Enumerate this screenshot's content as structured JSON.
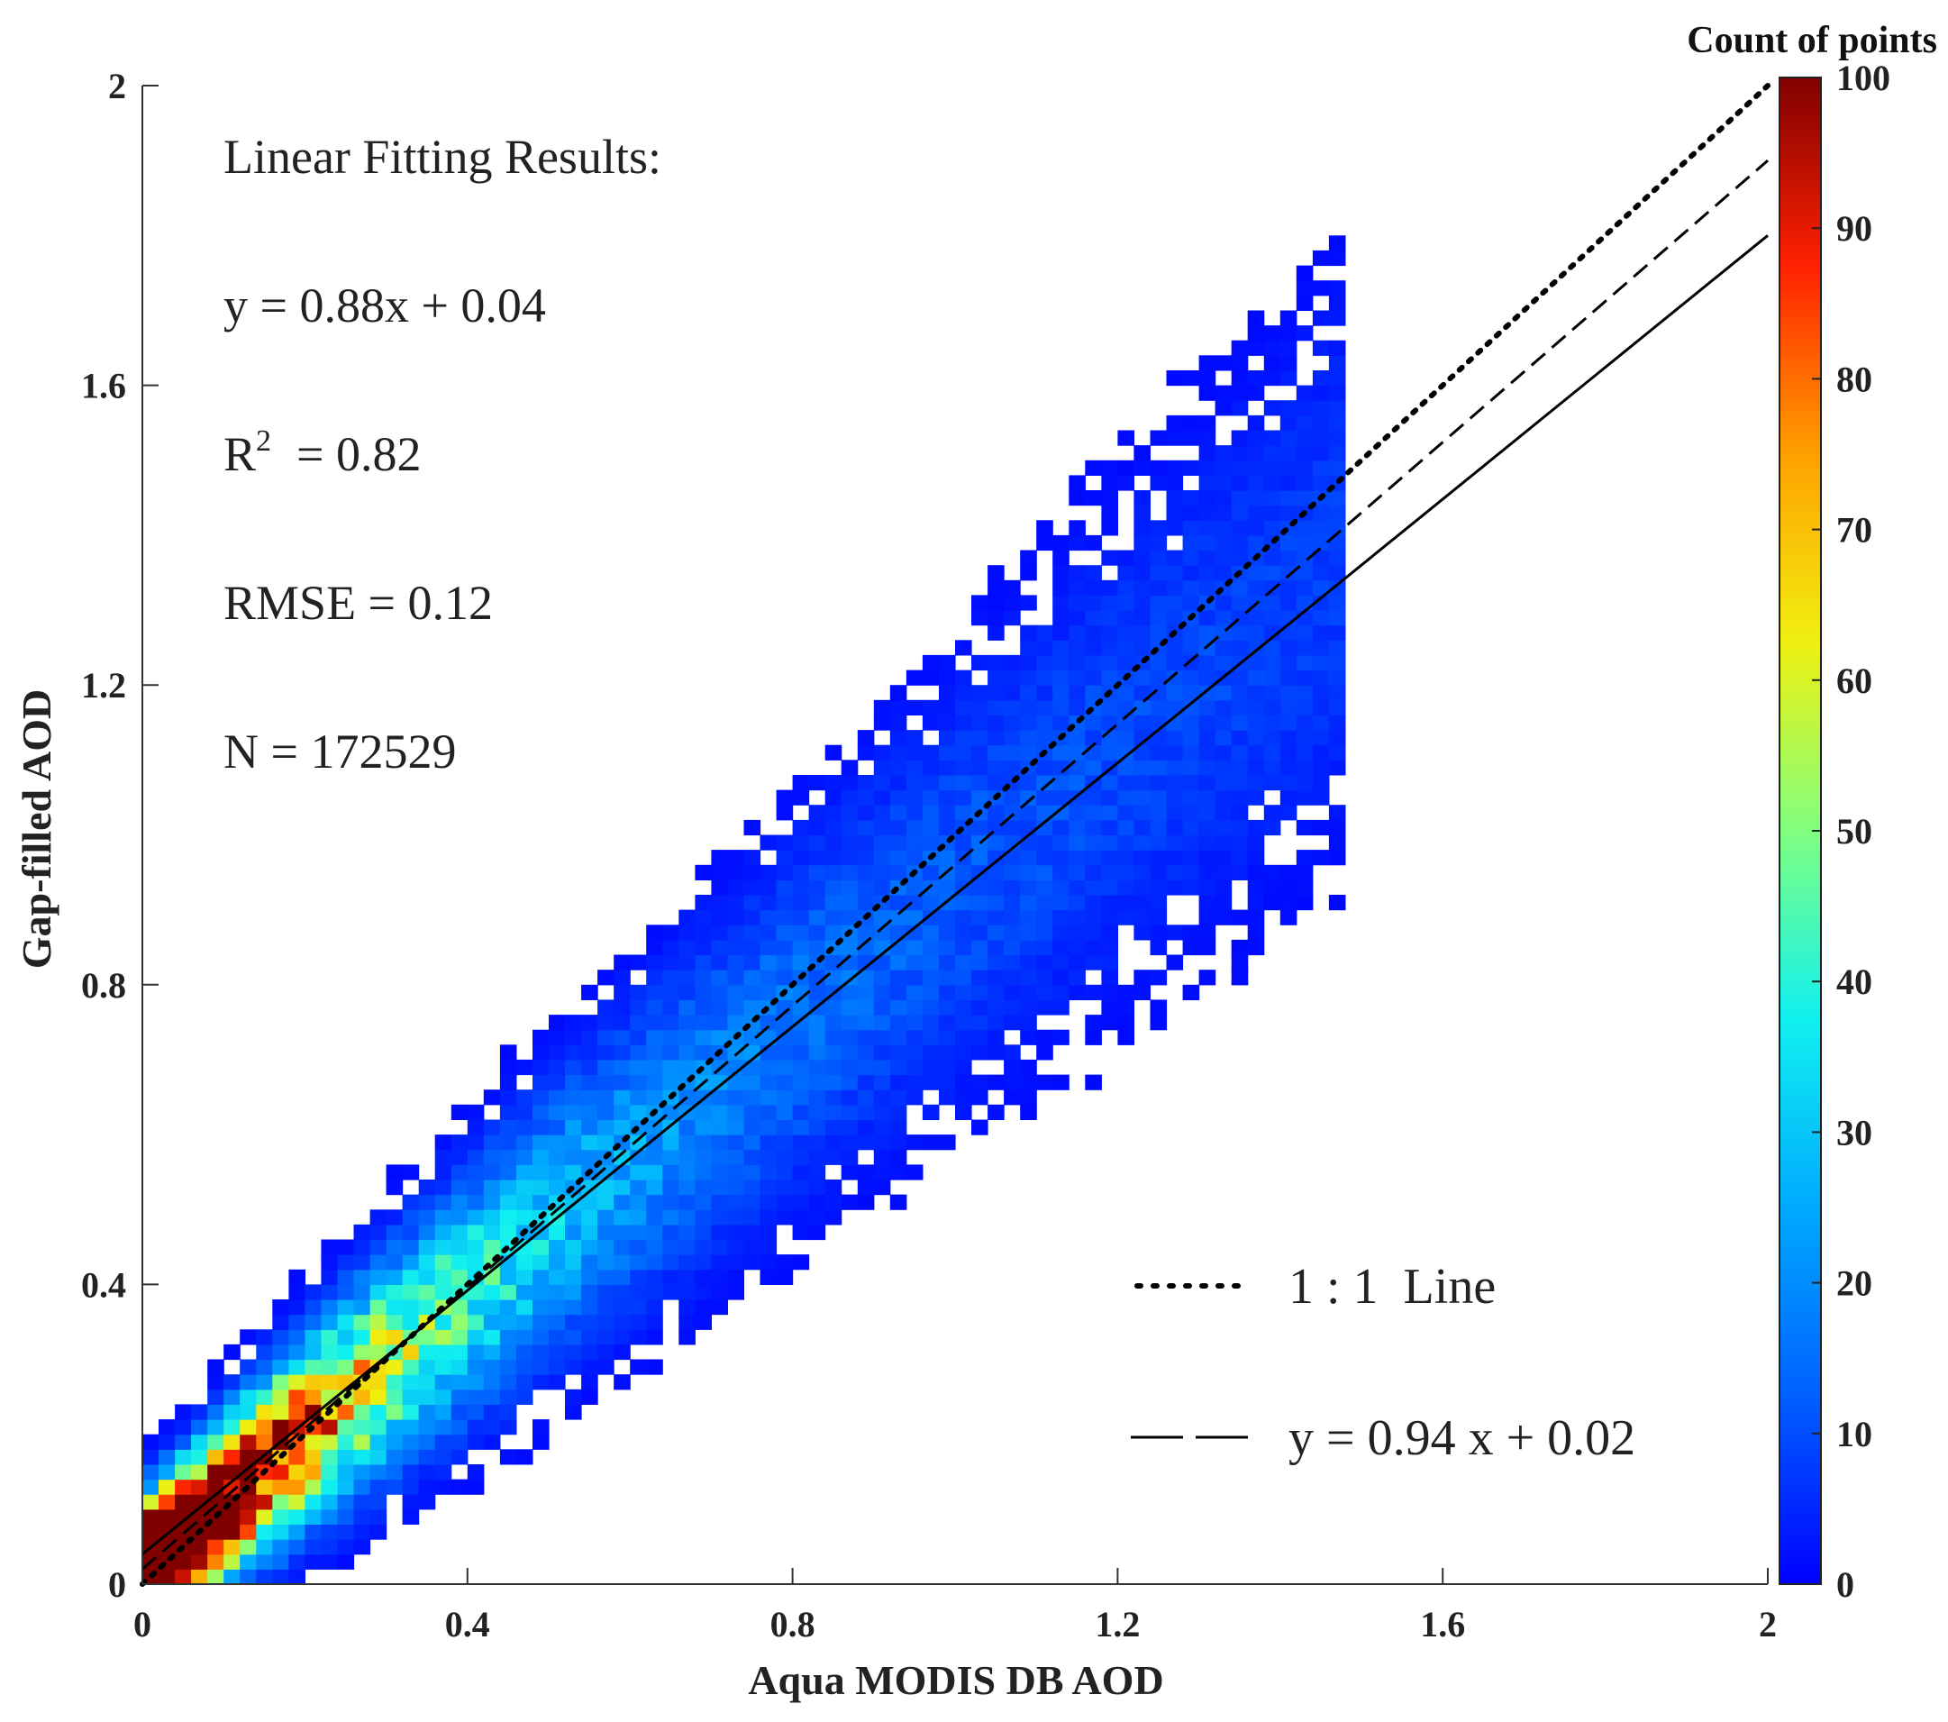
{
  "chart_data": {
    "type": "scatter",
    "subtype": "density-scatter",
    "xlabel": "Aqua MODIS DB AOD",
    "ylabel": "Gap-filled AOD",
    "xlim": [
      0,
      2
    ],
    "ylim": [
      0,
      2
    ],
    "xticks": [
      "0",
      "0.4",
      "0.8",
      "1.2",
      "1.6",
      "2"
    ],
    "yticks": [
      "0",
      "0.4",
      "0.8",
      "1.2",
      "1.6",
      "2"
    ],
    "xtick_values": [
      0,
      0.4,
      0.8,
      1.2,
      1.6,
      2
    ],
    "ytick_values": [
      0,
      0.4,
      0.8,
      1.2,
      1.6,
      2
    ],
    "annotations": {
      "title": "Linear Fitting Results:",
      "equation": "y = 0.88x + 0.04",
      "r2_label": "R",
      "r2_sup": "2",
      "r2_value": "= 0.82",
      "rmse": "RMSE = 0.12",
      "n": "N = 172529"
    },
    "fit_line": {
      "slope": 0.88,
      "intercept": 0.04
    },
    "series": [
      {
        "name": "1 : 1  Line",
        "style": "dotted",
        "slope": 1.0,
        "intercept": 0.0
      },
      {
        "name": "y = 0.94 x + 0.02",
        "style": "dashed",
        "slope": 0.94,
        "intercept": 0.02
      }
    ],
    "density": {
      "bin_size": 0.02,
      "center_slope": 0.91,
      "center_intercept": 0.02,
      "max_count": 100,
      "x_extent": [
        0,
        1.48
      ]
    },
    "colorbar": {
      "title": "Count of points",
      "min": 0,
      "max": 100,
      "ticks": [
        "0",
        "10",
        "20",
        "30",
        "40",
        "50",
        "60",
        "70",
        "80",
        "90",
        "100"
      ],
      "tick_values": [
        0,
        10,
        20,
        30,
        40,
        50,
        60,
        70,
        80,
        90,
        100
      ],
      "colormap": "jet"
    }
  },
  "colors": {
    "axis": "#222222",
    "fit_line": "#000000",
    "background": "#ffffff"
  }
}
